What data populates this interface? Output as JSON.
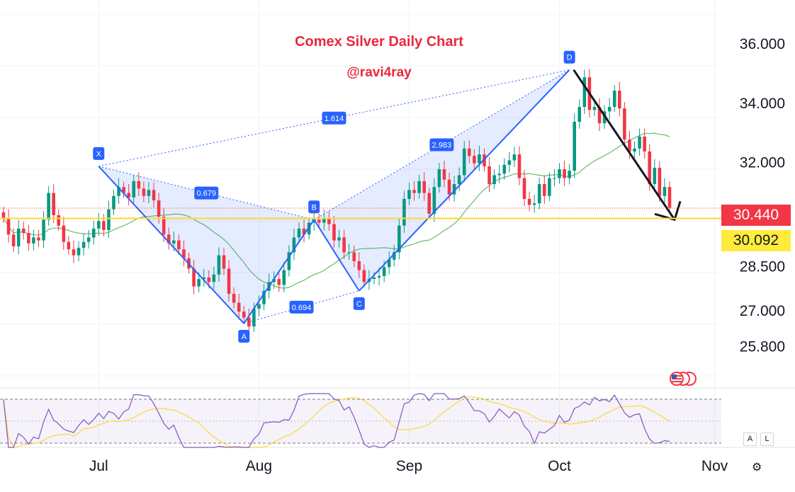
{
  "chart_data": {
    "type": "candlestick",
    "title": "Comex Silver Daily Chart",
    "subtitle": "@ravi4ray",
    "y_ticks": [
      "36.000",
      "34.000",
      "32.000",
      "28.500",
      "27.000",
      "25.800"
    ],
    "y_tick_values": [
      36.0,
      34.0,
      32.0,
      28.5,
      27.0,
      25.8
    ],
    "ylim": [
      25.6,
      36.5
    ],
    "x_tick_labels": [
      "Jul",
      "Aug",
      "Sep",
      "Oct",
      "Nov"
    ],
    "x_tick_index": [
      19,
      51,
      81,
      111,
      142
    ],
    "current_price": {
      "label": "30.440",
      "value": 30.44,
      "color": "#f23645"
    },
    "horizontal_level": {
      "label": "30.092",
      "value": 30.092,
      "color": "#ffeb3b"
    },
    "colors": {
      "up": "#089981",
      "down": "#f23645",
      "pattern": "#2962ff",
      "ma": "#4caf50",
      "rsi": "#7e57c2",
      "rsi_ma": "#fdd835"
    },
    "close": [
      30.1,
      29.55,
      29.15,
      29.75,
      29.6,
      29.25,
      29.45,
      29.35,
      30.05,
      30.95,
      30.2,
      29.85,
      29.3,
      29.05,
      28.85,
      29.1,
      29.3,
      29.45,
      29.75,
      30.0,
      29.7,
      30.4,
      30.85,
      31.15,
      30.95,
      30.8,
      31.35,
      31.1,
      30.85,
      31.05,
      30.7,
      30.15,
      29.55,
      29.25,
      29.35,
      29.05,
      28.75,
      28.4,
      27.8,
      28.05,
      28.1,
      27.95,
      28.2,
      28.85,
      28.4,
      27.55,
      27.25,
      26.95,
      26.75,
      26.45,
      27.05,
      27.2,
      27.65,
      27.95,
      28.05,
      27.85,
      28.35,
      28.95,
      29.45,
      29.75,
      29.55,
      29.95,
      30.05,
      29.95,
      30.1,
      29.9,
      29.35,
      29.45,
      28.95,
      28.95,
      28.65,
      28.35,
      27.95,
      28.05,
      28.1,
      28.15,
      28.45,
      28.7,
      28.95,
      29.85,
      30.75,
      31.05,
      30.95,
      31.35,
      30.95,
      30.25,
      31.15,
      31.75,
      31.4,
      30.9,
      31.25,
      31.55,
      32.45,
      32.2,
      31.95,
      32.25,
      31.85,
      31.25,
      31.55,
      31.6,
      31.9,
      32.05,
      32.25,
      31.45,
      30.75,
      30.55,
      30.6,
      31.25,
      30.85,
      31.45,
      31.45,
      31.75,
      31.45,
      31.7,
      33.35,
      33.85,
      34.85,
      33.75,
      33.85,
      33.3,
      33.7,
      33.85,
      34.4,
      33.8,
      32.75,
      32.35,
      32.45,
      32.85,
      32.35,
      31.25,
      31.8,
      30.85,
      31.15,
      30.45
    ]
  },
  "pattern": {
    "labels": [
      "X",
      "A",
      "B",
      "C",
      "D"
    ],
    "ratios": [
      "0.679",
      "1.614",
      "0.694",
      "2.983"
    ]
  },
  "scale_buttons": {
    "auto": "A",
    "log": "L"
  },
  "settings_icon": "⚙"
}
